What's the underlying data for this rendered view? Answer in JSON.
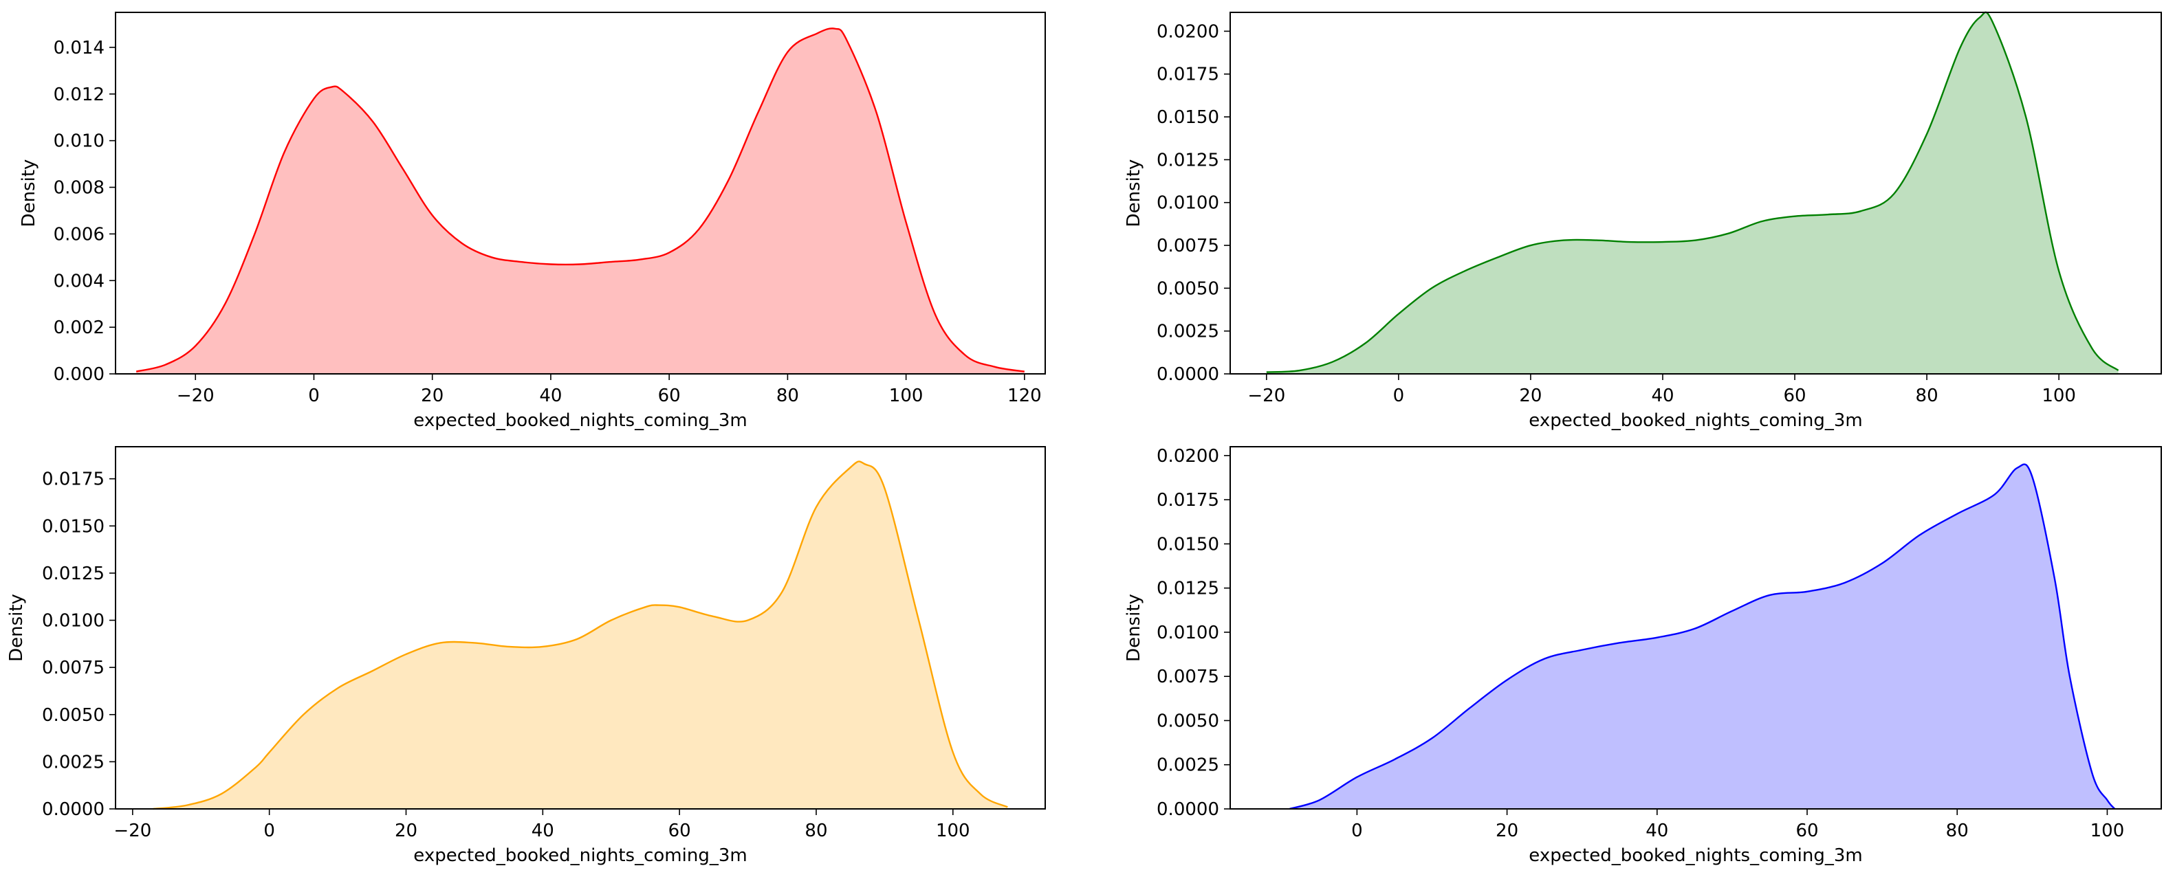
{
  "chart_data": [
    {
      "type": "area",
      "xlabel": "expected_booked_nights_coming_3m",
      "ylabel": "Density",
      "xlim": [
        -33.5,
        123.5
      ],
      "ylim": [
        0,
        0.0155
      ],
      "xticks": [
        -20,
        0,
        20,
        40,
        60,
        80,
        100,
        120
      ],
      "xtick_labels": [
        "−20",
        "0",
        "20",
        "40",
        "60",
        "80",
        "100",
        "120"
      ],
      "yticks": [
        0,
        0.002,
        0.004,
        0.006,
        0.008,
        0.01,
        0.012,
        0.014
      ],
      "ytick_labels": [
        "0.000",
        "0.002",
        "0.004",
        "0.006",
        "0.008",
        "0.010",
        "0.012",
        "0.014"
      ],
      "color": "#ff0000",
      "fill_color": "#ffbfbf",
      "grid": false,
      "series": [
        {
          "x": [
            -30,
            -25,
            -20,
            -15,
            -10,
            -5,
            0,
            3,
            5,
            10,
            15,
            20,
            25,
            30,
            35,
            40,
            45,
            50,
            55,
            60,
            65,
            70,
            75,
            80,
            85,
            88,
            90,
            95,
            100,
            105,
            110,
            115,
            120
          ],
          "y": [
            0.0001,
            0.0004,
            0.0012,
            0.003,
            0.006,
            0.0095,
            0.0118,
            0.0123,
            0.0121,
            0.0108,
            0.0088,
            0.0068,
            0.0056,
            0.005,
            0.0048,
            0.0047,
            0.0047,
            0.0048,
            0.0049,
            0.0052,
            0.0062,
            0.0083,
            0.0112,
            0.0138,
            0.0146,
            0.0148,
            0.0143,
            0.0112,
            0.0065,
            0.0025,
            0.0008,
            0.0003,
            0.0001
          ]
        }
      ]
    },
    {
      "type": "area",
      "xlabel": "expected_booked_nights_coming_3m",
      "ylabel": "Density",
      "xlim": [
        -25.5,
        115.5
      ],
      "ylim": [
        0,
        0.0211
      ],
      "xticks": [
        -20,
        0,
        20,
        40,
        60,
        80,
        100
      ],
      "xtick_labels": [
        "−20",
        "0",
        "20",
        "40",
        "60",
        "80",
        "100"
      ],
      "yticks": [
        0,
        0.0025,
        0.005,
        0.0075,
        0.01,
        0.0125,
        0.015,
        0.0175,
        0.02
      ],
      "ytick_labels": [
        "0.0000",
        "0.0025",
        "0.0050",
        "0.0075",
        "0.0100",
        "0.0125",
        "0.0150",
        "0.0175",
        "0.0200"
      ],
      "color": "#008000",
      "fill_color": "#bfdfbf",
      "grid": false,
      "series": [
        {
          "x": [
            -20,
            -15,
            -10,
            -5,
            0,
            5,
            10,
            15,
            20,
            25,
            30,
            35,
            40,
            45,
            50,
            55,
            60,
            65,
            70,
            75,
            80,
            85,
            88,
            90,
            95,
            100,
            105,
            109
          ],
          "y": [
            0.0001,
            0.0002,
            0.0007,
            0.0018,
            0.0035,
            0.005,
            0.006,
            0.0068,
            0.0075,
            0.0078,
            0.0078,
            0.0077,
            0.0077,
            0.0078,
            0.0082,
            0.0089,
            0.0092,
            0.0093,
            0.0095,
            0.0105,
            0.014,
            0.019,
            0.0208,
            0.0205,
            0.015,
            0.006,
            0.0015,
            0.0002
          ]
        }
      ]
    },
    {
      "type": "area",
      "xlabel": "expected_booked_nights_coming_3m",
      "ylabel": "Density",
      "xlim": [
        -22.5,
        113.5
      ],
      "ylim": [
        0,
        0.0192
      ],
      "xticks": [
        -20,
        0,
        20,
        40,
        60,
        80,
        100
      ],
      "xtick_labels": [
        "−20",
        "0",
        "20",
        "40",
        "60",
        "80",
        "100"
      ],
      "yticks": [
        0,
        0.0025,
        0.005,
        0.0075,
        0.01,
        0.0125,
        0.015,
        0.0175
      ],
      "ytick_labels": [
        "0.0000",
        "0.0025",
        "0.0050",
        "0.0075",
        "0.0100",
        "0.0125",
        "0.0150",
        "0.0175"
      ],
      "color": "#ffa500",
      "fill_color": "#ffe8bf",
      "grid": false,
      "series": [
        {
          "x": [
            -17,
            -12,
            -7,
            -2,
            0,
            5,
            10,
            15,
            20,
            25,
            30,
            35,
            40,
            45,
            50,
            55,
            57,
            60,
            65,
            70,
            75,
            80,
            85,
            87,
            90,
            95,
            100,
            104,
            108
          ],
          "y": [
            0.0,
            0.0002,
            0.0008,
            0.0022,
            0.003,
            0.005,
            0.0064,
            0.0073,
            0.0082,
            0.0088,
            0.0088,
            0.0086,
            0.0086,
            0.009,
            0.01,
            0.0107,
            0.0108,
            0.0107,
            0.0102,
            0.01,
            0.0115,
            0.016,
            0.0181,
            0.0183,
            0.017,
            0.01,
            0.003,
            0.0008,
            0.0001
          ]
        }
      ]
    },
    {
      "type": "area",
      "xlabel": "expected_booked_nights_coming_3m",
      "ylabel": "Density",
      "xlim": [
        -16.9,
        107.2
      ],
      "ylim": [
        0,
        0.0205
      ],
      "xticks": [
        0,
        20,
        40,
        60,
        80,
        100
      ],
      "xtick_labels": [
        "0",
        "20",
        "40",
        "60",
        "80",
        "100"
      ],
      "yticks": [
        0,
        0.0025,
        0.005,
        0.0075,
        0.01,
        0.0125,
        0.015,
        0.0175,
        0.02
      ],
      "ytick_labels": [
        "0.0000",
        "0.0025",
        "0.0050",
        "0.0075",
        "0.0100",
        "0.0125",
        "0.0150",
        "0.0175",
        "0.0200"
      ],
      "color": "#0000ff",
      "fill_color": "#bfbfff",
      "grid": false,
      "series": [
        {
          "x": [
            -9,
            -5,
            0,
            5,
            10,
            15,
            20,
            25,
            30,
            35,
            40,
            45,
            50,
            55,
            60,
            65,
            70,
            75,
            80,
            85,
            88,
            90,
            93,
            95,
            98,
            100,
            101
          ],
          "y": [
            0.0,
            0.0005,
            0.0018,
            0.0028,
            0.004,
            0.0057,
            0.0073,
            0.0085,
            0.009,
            0.0094,
            0.0097,
            0.0102,
            0.0112,
            0.0121,
            0.0123,
            0.0128,
            0.0139,
            0.0155,
            0.0167,
            0.0178,
            0.0193,
            0.0188,
            0.013,
            0.0075,
            0.002,
            0.0005,
            0.0
          ]
        }
      ]
    }
  ]
}
